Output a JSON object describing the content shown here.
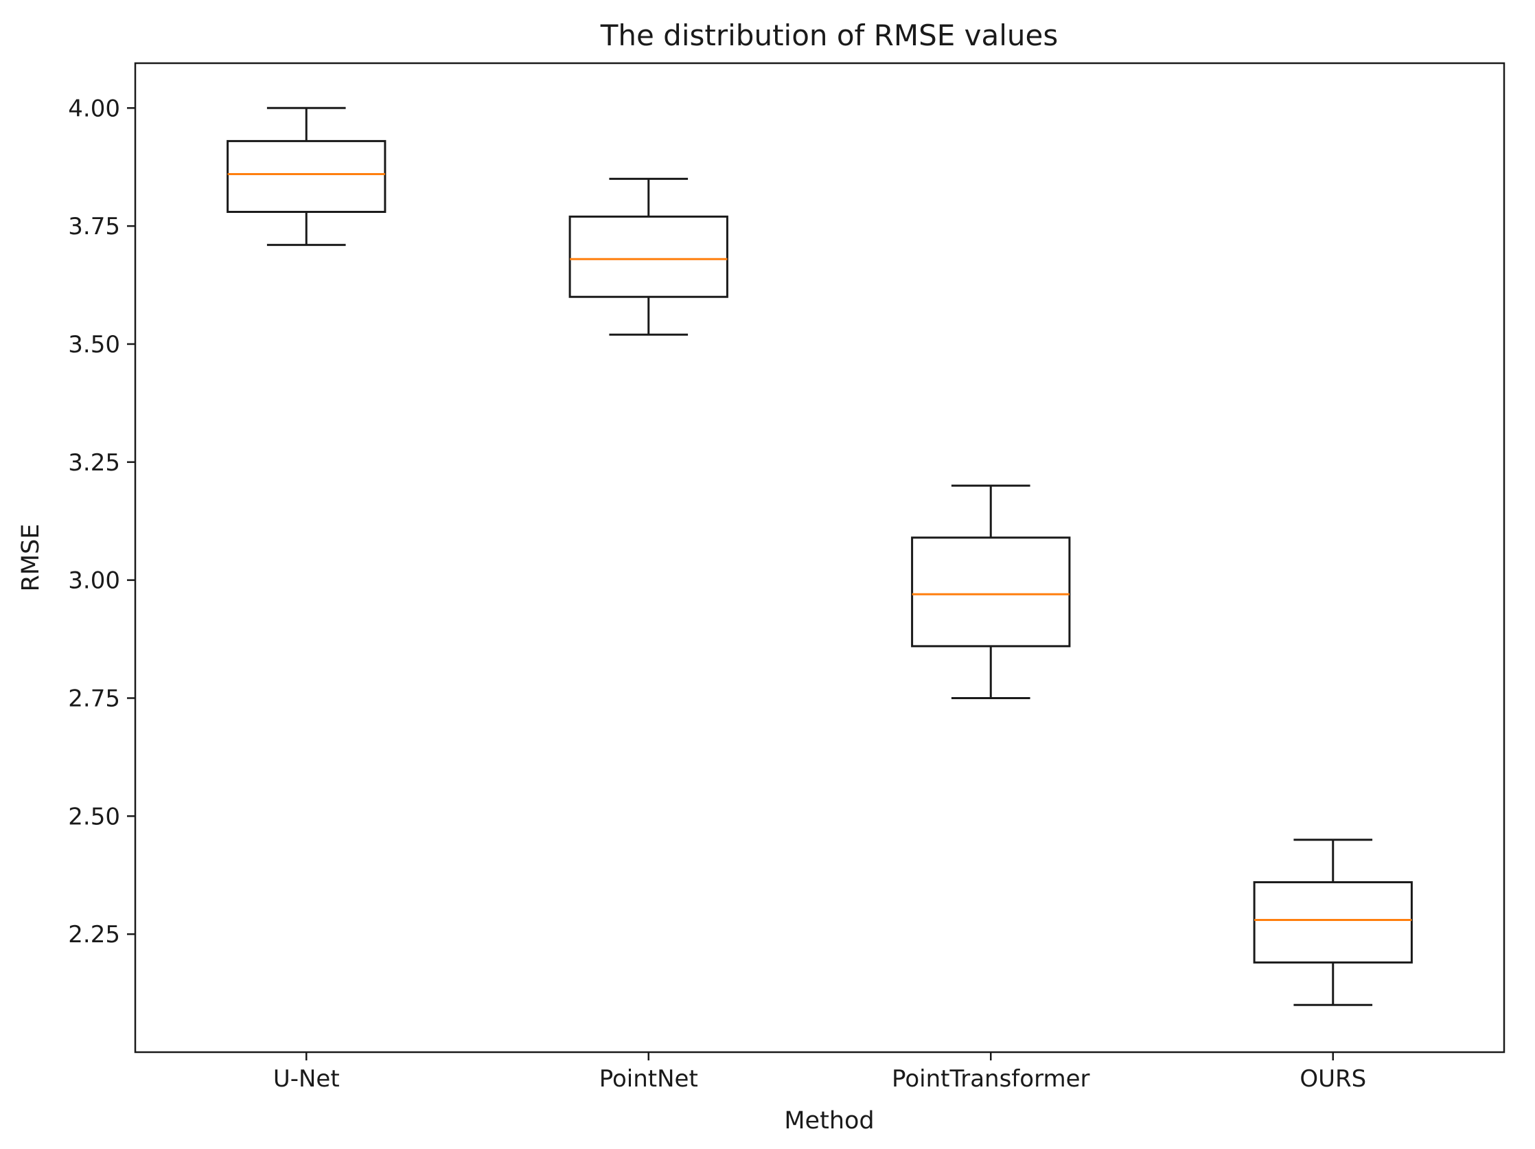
{
  "chart_data": {
    "type": "boxplot",
    "title": "The distribution of RMSE values",
    "xlabel": "Method",
    "ylabel": "RMSE",
    "ylim": [
      2.0,
      4.095
    ],
    "grid": false,
    "yticks": [
      2.25,
      2.5,
      2.75,
      3.0,
      3.25,
      3.5,
      3.75,
      4.0
    ],
    "ytick_labels": [
      "2.25",
      "2.50",
      "2.75",
      "3.00",
      "3.25",
      "3.50",
      "3.75",
      "4.00"
    ],
    "categories": [
      "U-Net",
      "PointNet",
      "PointTransformer",
      "OURS"
    ],
    "boxes": [
      {
        "name": "U-Net",
        "whisker_low": 3.71,
        "q1": 3.78,
        "median": 3.86,
        "q3": 3.93,
        "whisker_high": 4.0
      },
      {
        "name": "PointNet",
        "whisker_low": 3.52,
        "q1": 3.6,
        "median": 3.68,
        "q3": 3.77,
        "whisker_high": 3.85
      },
      {
        "name": "PointTransformer",
        "whisker_low": 2.75,
        "q1": 2.86,
        "median": 2.97,
        "q3": 3.09,
        "whisker_high": 3.2
      },
      {
        "name": "OURS",
        "whisker_low": 2.1,
        "q1": 2.19,
        "median": 2.28,
        "q3": 2.36,
        "whisker_high": 2.45
      }
    ],
    "colors": {
      "box": "#1a1a1a",
      "median": "#ff7f0e",
      "axis": "#1a1a1a"
    }
  }
}
